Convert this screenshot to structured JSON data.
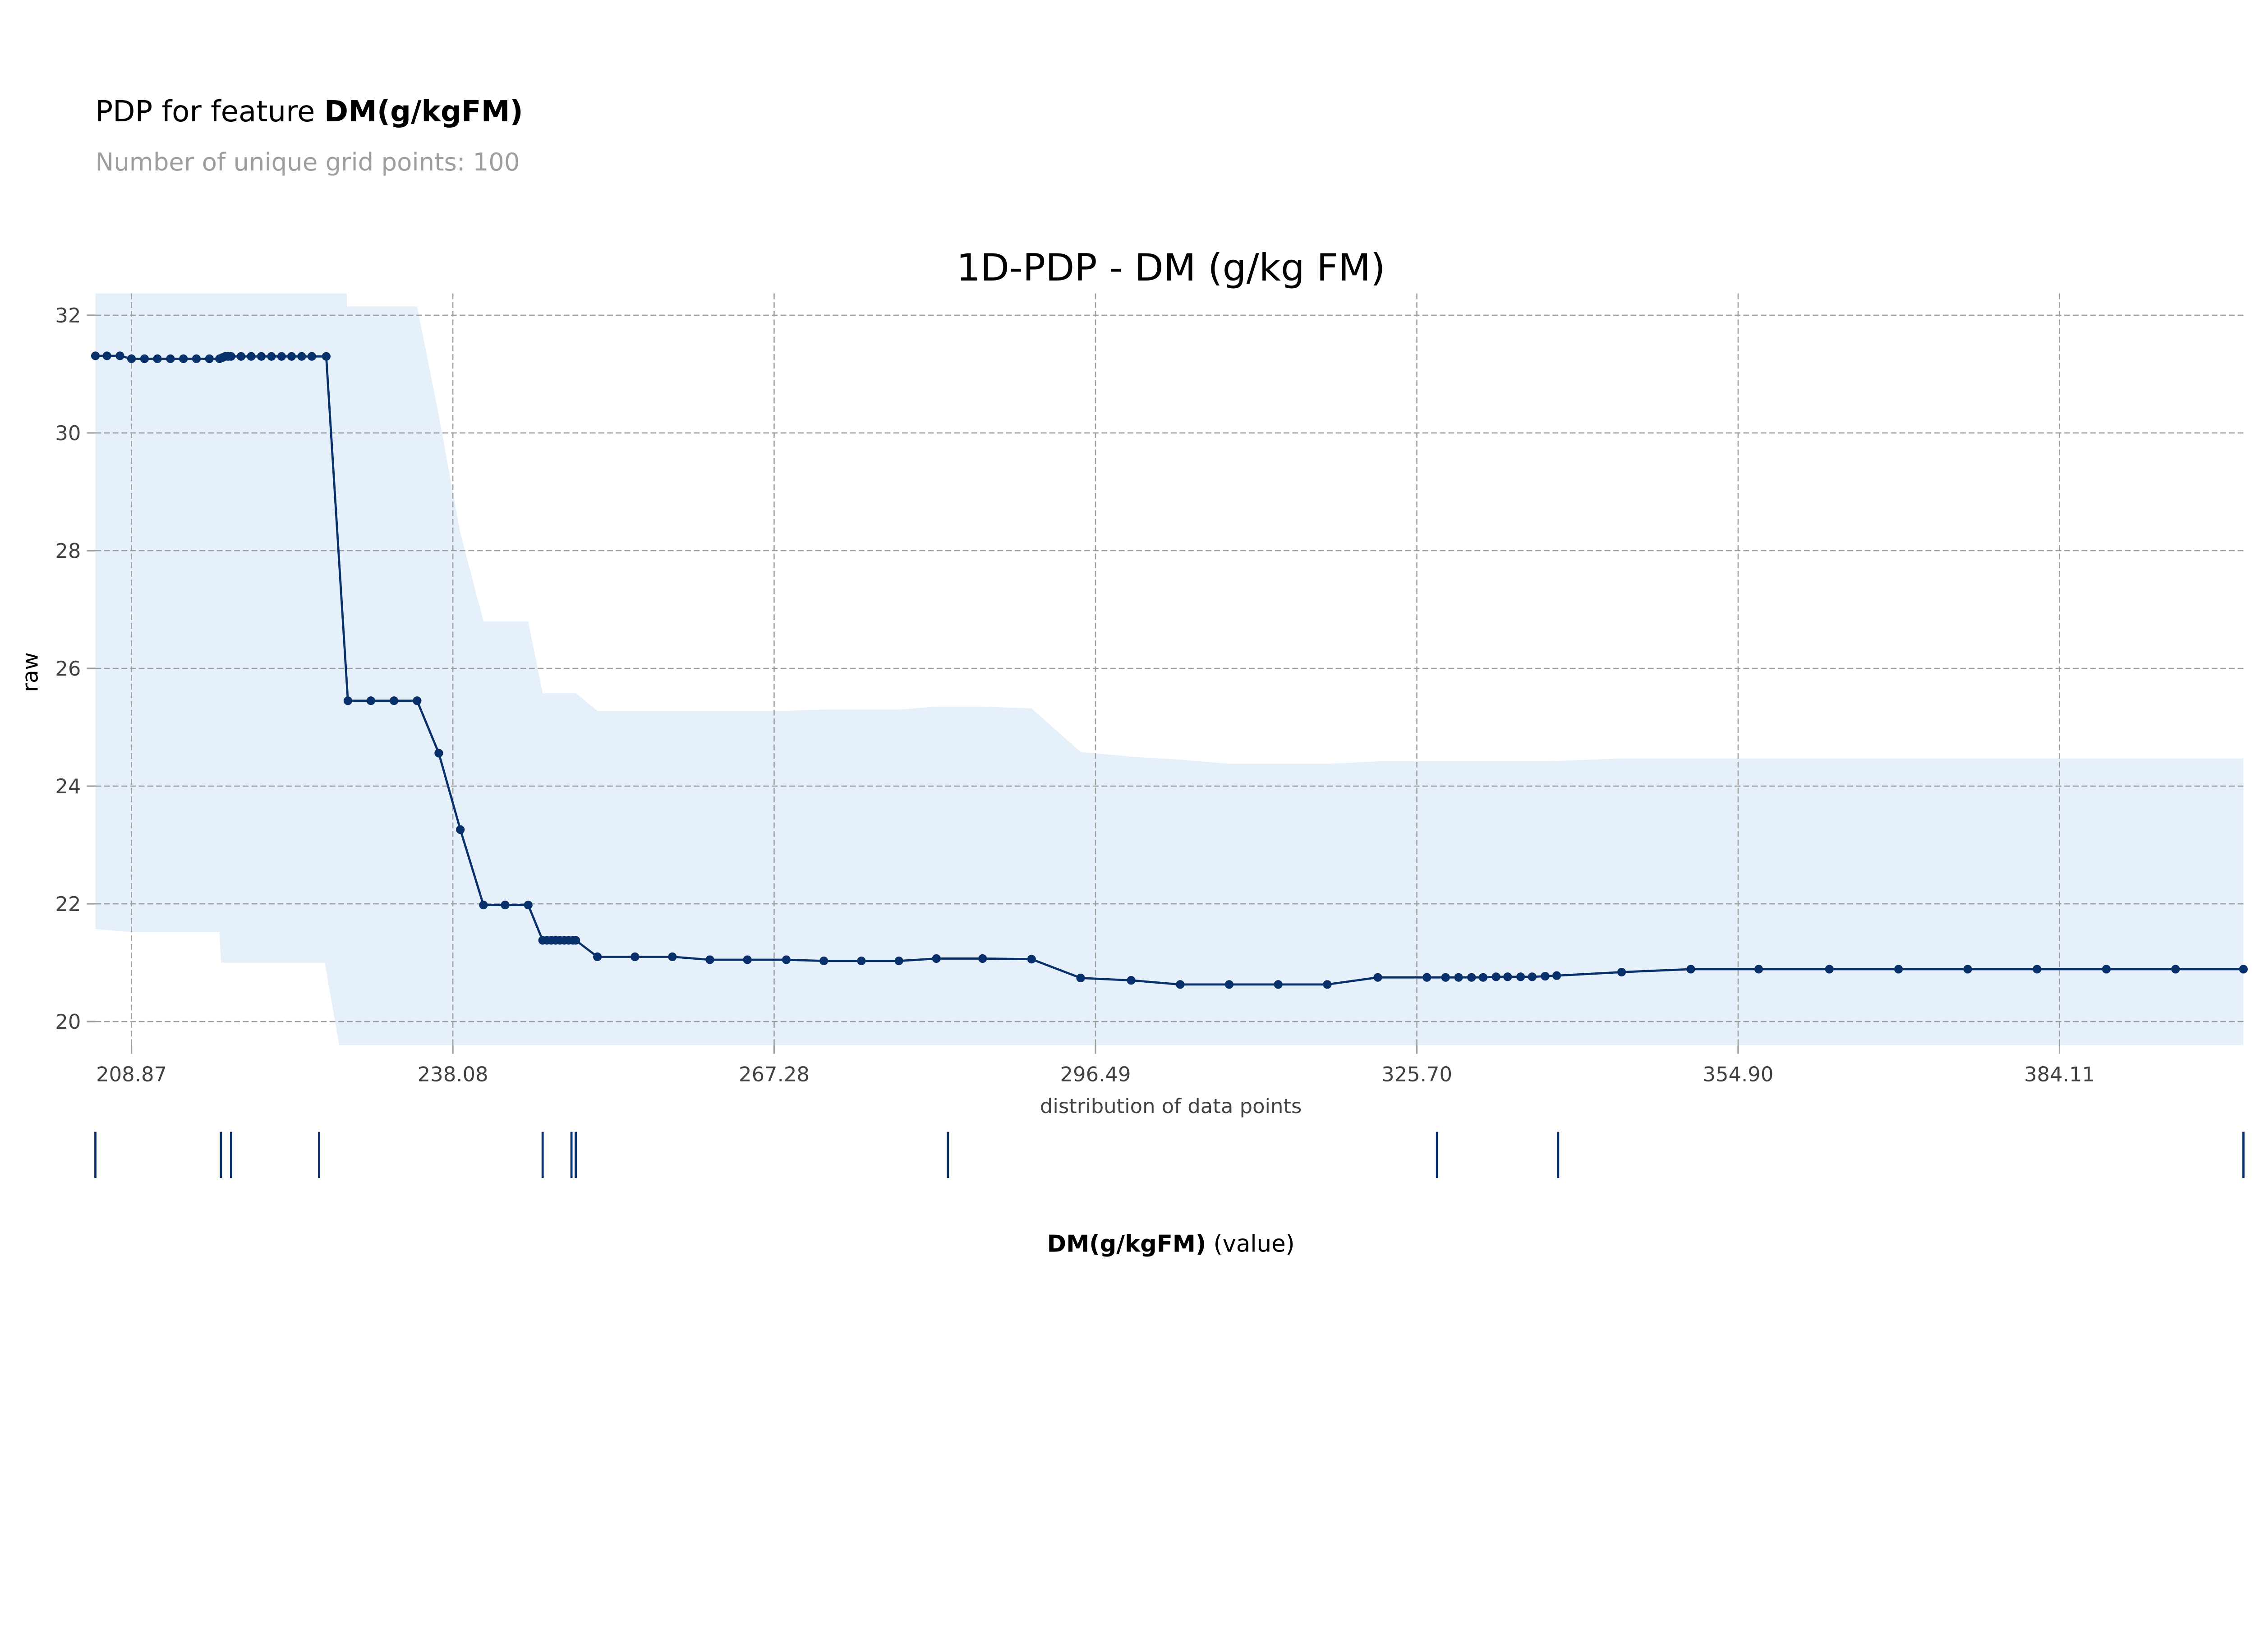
{
  "header": {
    "title_prefix": "PDP for feature ",
    "title_feature": "DM(g/kgFM)",
    "subtitle": "Number of unique grid points: 100"
  },
  "colors": {
    "line": "#08306b",
    "band": "#e6f0fa",
    "grid": "#9e9e9e",
    "subtitle": "#9e9e9e"
  },
  "chart_data": {
    "type": "line",
    "title": "1D-PDP - DM (g/kg FM)",
    "ylabel": "raw",
    "xlabel_bold": "DM(g/kgFM)",
    "xlabel_suffix": " (value)",
    "rug_label": "distribution of data points",
    "xlim": [
      205.59,
      400.83
    ],
    "ylim": [
      19.6,
      32.37
    ],
    "grid": true,
    "xticks": [
      208.87,
      238.08,
      267.28,
      296.49,
      325.7,
      354.9,
      384.11
    ],
    "xtick_labels": [
      "208.87",
      "238.08",
      "267.28",
      "296.49",
      "325.70",
      "354.90",
      "384.11"
    ],
    "yticks": [
      20,
      22,
      24,
      26,
      28,
      30,
      32
    ],
    "ytick_labels": [
      "20",
      "22",
      "24",
      "26",
      "28",
      "30",
      "32"
    ],
    "series": [
      {
        "name": "pdp",
        "x": [
          205.59,
          206.64,
          207.82,
          208.87,
          210.05,
          211.23,
          212.41,
          213.59,
          214.77,
          215.95,
          216.87,
          217.13,
          217.39,
          217.65,
          217.92,
          218.83,
          219.75,
          220.67,
          221.59,
          222.51,
          223.42,
          224.34,
          225.26,
          226.57,
          228.54,
          230.63,
          232.73,
          234.83,
          236.8,
          238.76,
          240.86,
          242.83,
          244.93,
          246.24,
          246.63,
          247.02,
          247.42,
          247.81,
          248.2,
          248.6,
          248.99,
          249.25,
          251.22,
          254.63,
          258.03,
          261.44,
          264.85,
          268.39,
          271.8,
          275.21,
          278.62,
          282.03,
          286.23,
          290.68,
          295.14,
          299.73,
          304.19,
          308.64,
          313.1,
          317.56,
          322.15,
          326.61,
          328.31,
          329.49,
          330.67,
          331.72,
          332.9,
          333.95,
          335.13,
          336.18,
          337.36,
          338.41,
          344.31,
          350.6,
          356.77,
          363.19,
          369.48,
          375.77,
          382.07,
          388.37,
          394.66,
          400.83
        ],
        "y": [
          31.31,
          31.31,
          31.31,
          31.26,
          31.26,
          31.26,
          31.26,
          31.26,
          31.26,
          31.26,
          31.26,
          31.28,
          31.3,
          31.3,
          31.3,
          31.3,
          31.3,
          31.3,
          31.3,
          31.3,
          31.3,
          31.3,
          31.3,
          31.3,
          25.45,
          25.45,
          25.45,
          25.45,
          24.56,
          23.26,
          21.98,
          21.98,
          21.98,
          21.38,
          21.38,
          21.38,
          21.38,
          21.38,
          21.38,
          21.38,
          21.38,
          21.38,
          21.1,
          21.1,
          21.1,
          21.05,
          21.05,
          21.05,
          21.03,
          21.03,
          21.03,
          21.07,
          21.07,
          21.06,
          20.74,
          20.7,
          20.63,
          20.63,
          20.63,
          20.63,
          20.75,
          20.75,
          20.75,
          20.75,
          20.75,
          20.75,
          20.76,
          20.76,
          20.76,
          20.76,
          20.77,
          20.78,
          20.84,
          20.89,
          20.89,
          20.89,
          20.89,
          20.89,
          20.89,
          20.89,
          20.89,
          20.89
        ]
      }
    ],
    "band_upper": [
      [
        205.59,
        32.37
      ],
      [
        228.44,
        32.37
      ],
      [
        228.44,
        32.15
      ],
      [
        234.83,
        32.15
      ],
      [
        236.8,
        30.3
      ],
      [
        238.76,
        28.3
      ],
      [
        240.86,
        26.8
      ],
      [
        244.93,
        26.8
      ],
      [
        246.24,
        25.58
      ],
      [
        249.25,
        25.58
      ],
      [
        251.22,
        25.28
      ],
      [
        268.39,
        25.28
      ],
      [
        271.8,
        25.3
      ],
      [
        278.62,
        25.3
      ],
      [
        282.03,
        25.35
      ],
      [
        286.23,
        25.35
      ],
      [
        290.68,
        25.32
      ],
      [
        295.14,
        24.58
      ],
      [
        299.73,
        24.5
      ],
      [
        304.19,
        24.45
      ],
      [
        308.64,
        24.38
      ],
      [
        317.56,
        24.38
      ],
      [
        322.15,
        24.42
      ],
      [
        337.36,
        24.42
      ],
      [
        344.31,
        24.47
      ],
      [
        400.83,
        24.47
      ]
    ],
    "band_lower": [
      [
        205.59,
        21.57
      ],
      [
        208.87,
        21.52
      ],
      [
        216.87,
        21.52
      ],
      [
        217.0,
        21.0
      ],
      [
        226.44,
        21.0
      ],
      [
        227.75,
        19.6
      ],
      [
        400.83,
        19.6
      ]
    ],
    "rug_x": [
      205.59,
      217.0,
      217.92,
      225.92,
      246.24,
      248.86,
      249.25,
      283.08,
      327.53,
      338.54,
      400.83
    ]
  }
}
